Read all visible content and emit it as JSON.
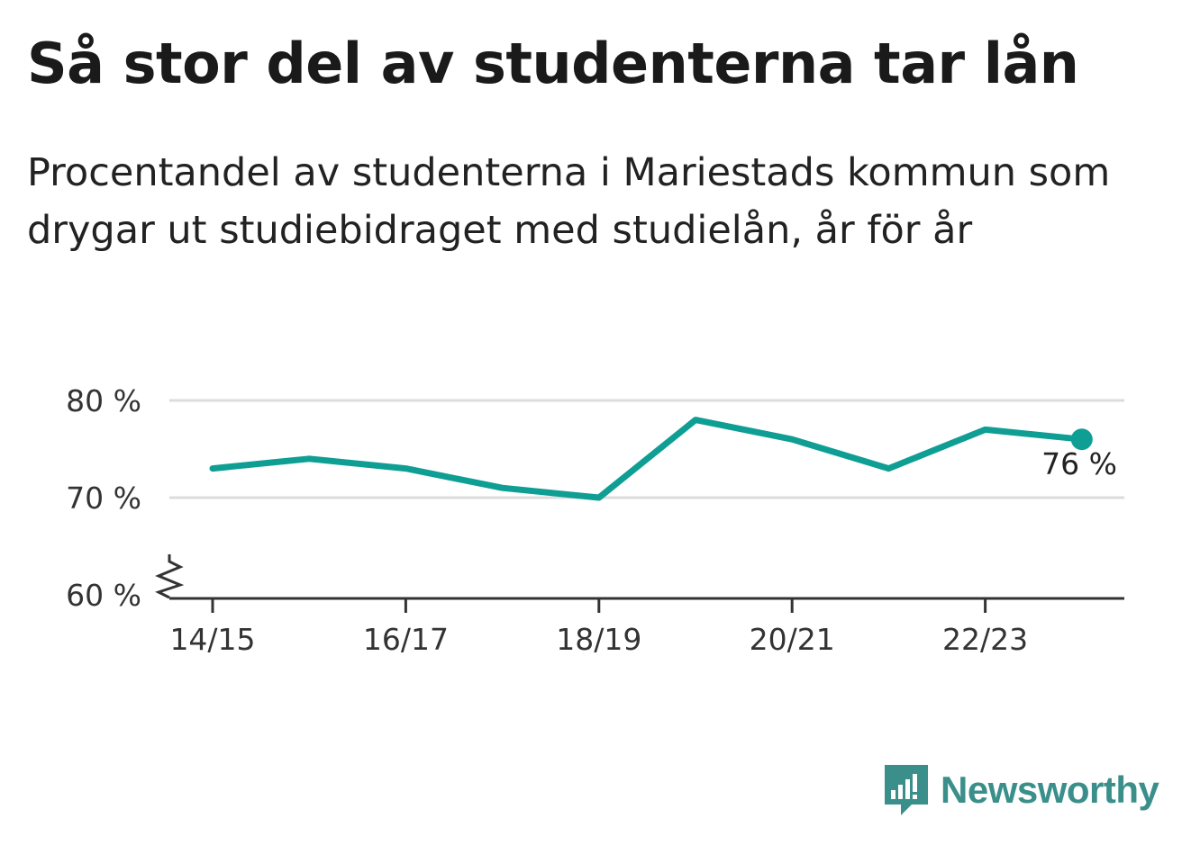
{
  "title": "Så stor del av studenterna tar lån",
  "subtitle": "Procentandel av studenterna i Mariestads kommun som drygar ut studiebidraget med studielån, år för år",
  "brand": {
    "name": "Newsworthy",
    "color": "#3a8f8a"
  },
  "chart_data": {
    "type": "line",
    "x": [
      "14/15",
      "15/16",
      "16/17",
      "17/18",
      "18/19",
      "19/20",
      "20/21",
      "21/22",
      "22/23",
      "23/24"
    ],
    "series": [
      {
        "values": [
          73,
          74,
          73,
          71,
          70,
          78,
          76,
          73,
          77,
          76
        ],
        "color": "#0f9e94"
      }
    ],
    "x_tick_labels": [
      "14/15",
      "16/17",
      "18/19",
      "20/21",
      "22/23"
    ],
    "y_ticks": [
      60,
      70,
      80
    ],
    "y_tick_labels": [
      "60 %",
      "70 %",
      "80 %"
    ],
    "ylim": [
      60,
      80
    ],
    "y_axis_break": true,
    "grid": true,
    "last_value_label": "76 %"
  }
}
